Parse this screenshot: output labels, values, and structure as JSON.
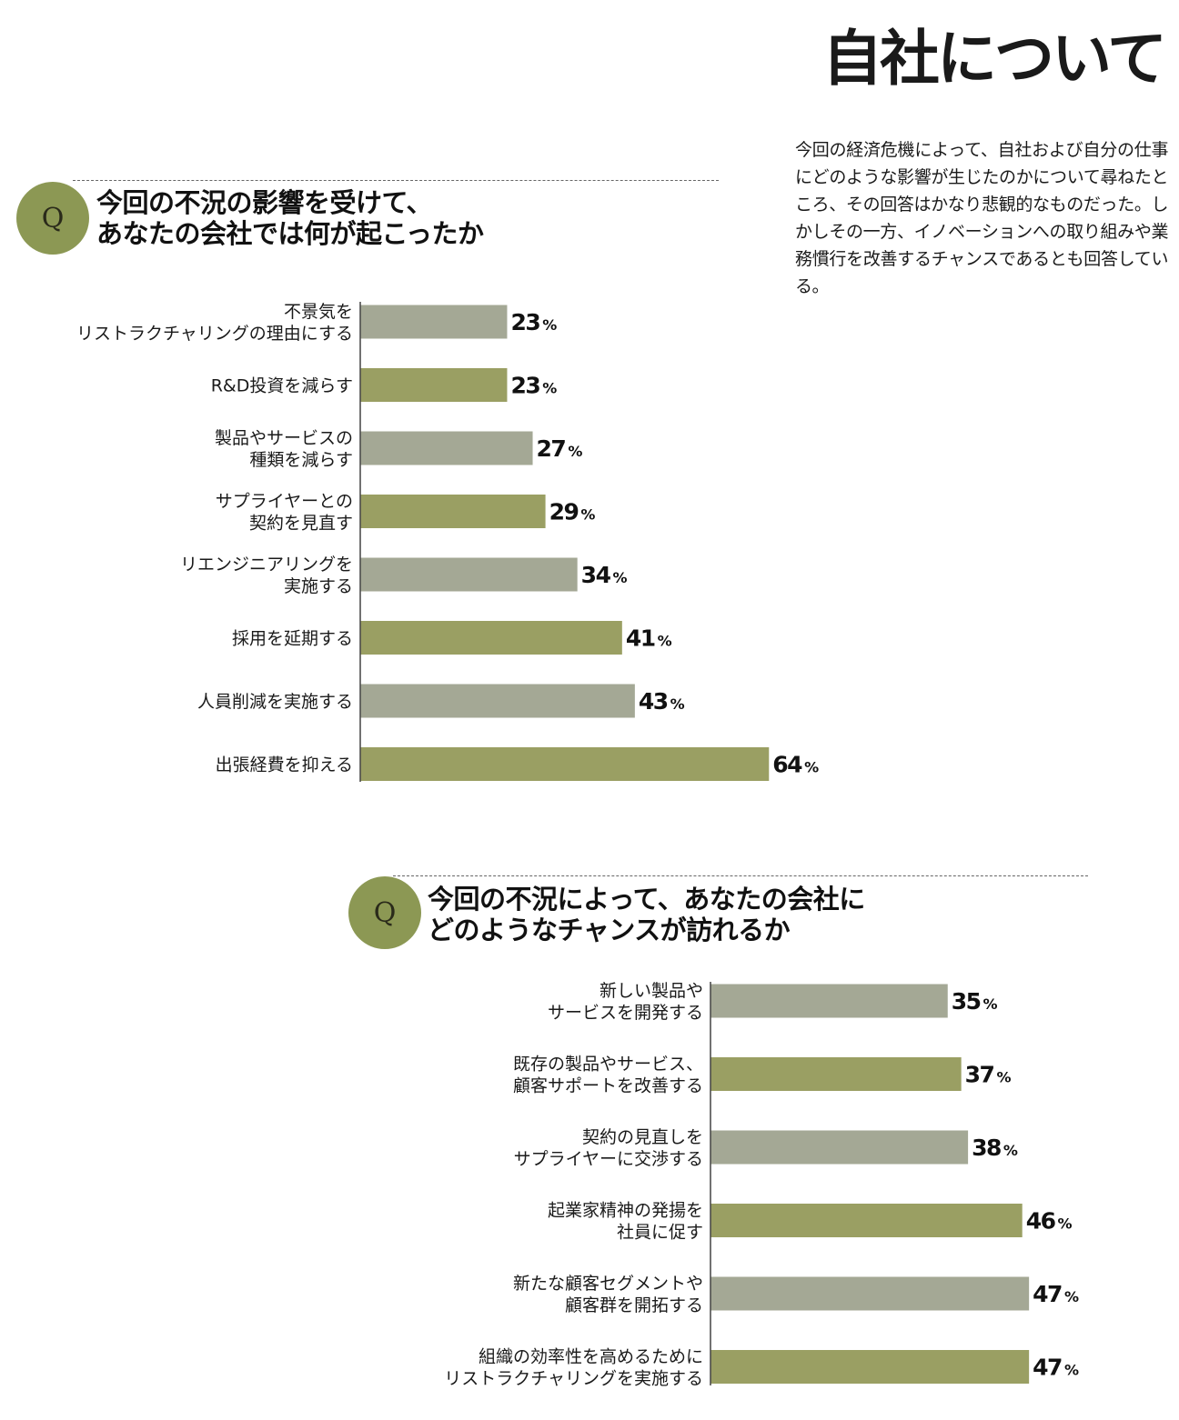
{
  "header": {
    "title": "自社について",
    "intro": "今回の経済危機によって、自社および自分の仕事にどのような影響が生じたのかについて尋ねたところ、その回答はかなり悲観的なものだった。しかしその一方、イノベーションへの取り組みや業務慣行を改善するチャンスであるとも回答している。"
  },
  "colors": {
    "gray": "#a4a895",
    "olive": "#9a9f63",
    "badge": "#8c9854"
  },
  "chart_data": [
    {
      "type": "bar",
      "orientation": "horizontal",
      "badge": "Q",
      "title": "今回の不況の影響を受けて、\nあなたの会社では何が起こったか",
      "categories": [
        "不景気を\nリストラクチャリングの理由にする",
        "R&D投資を減らす",
        "製品やサービスの\n種類を減らす",
        "サプライヤーとの\n契約を見直す",
        "リエンジニアリングを\n実施する",
        "採用を延期する",
        "人員削減を実施する",
        "出張経費を抑える"
      ],
      "values": [
        23,
        23,
        27,
        29,
        34,
        41,
        43,
        64
      ],
      "unit": "%",
      "bar_colors": [
        "gray",
        "olive",
        "gray",
        "olive",
        "gray",
        "olive",
        "gray",
        "olive"
      ]
    },
    {
      "type": "bar",
      "orientation": "horizontal",
      "badge": "Q",
      "title": "今回の不況によって、あなたの会社に\nどのようなチャンスが訪れるか",
      "categories": [
        "新しい製品や\nサービスを開発する",
        "既存の製品やサービス、\n顧客サポートを改善する",
        "契約の見直しを\nサプライヤーに交渉する",
        "起業家精神の発揚を\n社員に促す",
        "新たな顧客セグメントや\n顧客群を開拓する",
        "組織の効率性を高めるために\nリストラクチャリングを実施する"
      ],
      "values": [
        35,
        37,
        38,
        46,
        47,
        47
      ],
      "unit": "%",
      "bar_colors": [
        "gray",
        "olive",
        "gray",
        "olive",
        "gray",
        "olive"
      ]
    }
  ]
}
